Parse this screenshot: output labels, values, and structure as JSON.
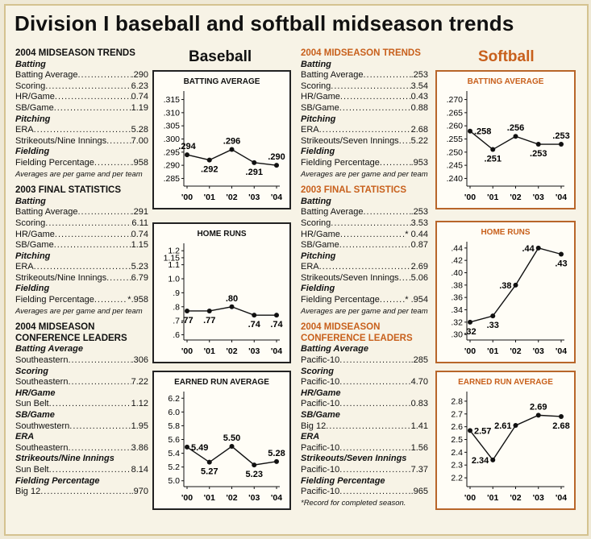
{
  "title": "Division I baseball and softball midseason trends",
  "baseball_label": "Baseball",
  "softball_label": "Softball",
  "left_col": {
    "sections": [
      {
        "heading": "2004 MIDSEASON TRENDS",
        "groups": [
          {
            "sub": "Batting",
            "rows": [
              {
                "label": "Batting Average",
                "value": ".290"
              },
              {
                "label": "Scoring",
                "value": "6.23"
              },
              {
                "label": "HR/Game",
                "value": "0.74"
              },
              {
                "label": "SB/Game",
                "value": "1.19"
              }
            ]
          },
          {
            "sub": "Pitching",
            "rows": [
              {
                "label": "ERA",
                "value": "5.28"
              },
              {
                "label": "Strikeouts/Nine Innings",
                "value": "7.00"
              }
            ]
          },
          {
            "sub": "Fielding",
            "rows": [
              {
                "label": "Fielding Percentage",
                "value": ".958"
              }
            ]
          }
        ],
        "note": "Averages are per game and per team"
      },
      {
        "heading": "2003 FINAL STATISTICS",
        "groups": [
          {
            "sub": "Batting",
            "rows": [
              {
                "label": "Batting Average",
                "value": ".291"
              },
              {
                "label": "Scoring",
                "value": "6.11"
              },
              {
                "label": "HR/Game",
                "value": "0.74"
              },
              {
                "label": "SB/Game",
                "value": "1.15"
              }
            ]
          },
          {
            "sub": "Pitching",
            "rows": [
              {
                "label": "ERA",
                "value": "5.23"
              },
              {
                "label": "Strikeouts/Nine Innings",
                "value": "6.79"
              }
            ]
          },
          {
            "sub": "Fielding",
            "rows": [
              {
                "label": "Fielding Percentage",
                "value": "*.958"
              }
            ]
          }
        ],
        "note": "Averages are per game and per team"
      },
      {
        "heading": "2004 MIDSEASON CONFERENCE LEADERS",
        "groups": [
          {
            "sub": "Batting Average",
            "rows": [
              {
                "label": "Southeastern",
                "value": ".306"
              }
            ]
          },
          {
            "sub": "Scoring",
            "rows": [
              {
                "label": "Southeastern",
                "value": "7.22"
              }
            ]
          },
          {
            "sub": "HR/Game",
            "rows": [
              {
                "label": "Sun Belt",
                "value": "1.12"
              }
            ]
          },
          {
            "sub": "SB/Game",
            "rows": [
              {
                "label": "Southwestern",
                "value": "1.95"
              }
            ]
          },
          {
            "sub": "ERA",
            "rows": [
              {
                "label": "Southeastern",
                "value": "3.86"
              }
            ]
          },
          {
            "sub": "Strikeouts/Nine Innings",
            "rows": [
              {
                "label": "Sun Belt",
                "value": "8.14"
              }
            ]
          },
          {
            "sub": "Fielding Percentage",
            "rows": [
              {
                "label": "Big 12",
                "value": ".970"
              }
            ]
          }
        ]
      }
    ]
  },
  "right_col": {
    "sections": [
      {
        "heading": "2004 MIDSEASON TRENDS",
        "groups": [
          {
            "sub": "Batting",
            "rows": [
              {
                "label": "Batting Average",
                "value": ".253"
              },
              {
                "label": "Scoring",
                "value": "3.54"
              },
              {
                "label": "HR/Game",
                "value": "0.43"
              },
              {
                "label": "SB/Game",
                "value": "0.88"
              }
            ]
          },
          {
            "sub": "Pitching",
            "rows": [
              {
                "label": "ERA",
                "value": "2.68"
              },
              {
                "label": "Strikeouts/Seven Innings",
                "value": "5.22"
              }
            ]
          },
          {
            "sub": "Fielding",
            "rows": [
              {
                "label": "Fielding Percentage",
                "value": ".953"
              }
            ]
          }
        ],
        "note": "Averages are per game and per team"
      },
      {
        "heading": "2003 FINAL STATISTICS",
        "groups": [
          {
            "sub": "Batting",
            "rows": [
              {
                "label": "Batting Average",
                "value": ".253"
              },
              {
                "label": "Scoring",
                "value": "3.53"
              },
              {
                "label": "HR/Game",
                "value": "* 0.44"
              },
              {
                "label": "SB/Game",
                "value": "0.87"
              }
            ]
          },
          {
            "sub": "Pitching",
            "rows": [
              {
                "label": "ERA",
                "value": "2.69"
              },
              {
                "label": "Strikeouts/Seven Innings",
                "value": "5.06"
              }
            ]
          },
          {
            "sub": "Fielding",
            "rows": [
              {
                "label": "Fielding Percentage",
                "value": "* .954"
              }
            ]
          }
        ],
        "note": "Averages are per game and per team"
      },
      {
        "heading": "2004 MIDSEASON CONFERENCE LEADERS",
        "groups": [
          {
            "sub": "Batting Average",
            "rows": [
              {
                "label": "Pacific-10",
                "value": ".285"
              }
            ]
          },
          {
            "sub": "Scoring",
            "rows": [
              {
                "label": "Pacific-10",
                "value": "4.70"
              }
            ]
          },
          {
            "sub": "HR/Game",
            "rows": [
              {
                "label": "Pacific-10",
                "value": "0.83"
              }
            ]
          },
          {
            "sub": "SB/Game",
            "rows": [
              {
                "label": "Big 12",
                "value": "1.41"
              }
            ]
          },
          {
            "sub": "ERA",
            "rows": [
              {
                "label": "Pacific-10",
                "value": "1.56"
              }
            ]
          },
          {
            "sub": "Strikeouts/Seven Innings",
            "rows": [
              {
                "label": "Pacific-10",
                "value": "7.37"
              }
            ]
          },
          {
            "sub": "Fielding Percentage",
            "rows": [
              {
                "label": "Pacific-10",
                "value": ".965"
              }
            ]
          }
        ],
        "note": "*Record for completed season."
      }
    ]
  },
  "colors": {
    "orange": "#c8601c",
    "chart_border_orange": "#b8662a",
    "line": "#111111"
  },
  "chart_data": [
    {
      "id": "bb-avg",
      "sport": "Baseball",
      "type": "line",
      "title": "Batting Average",
      "categories": [
        "'00",
        "'01",
        "'02",
        "'03",
        "'04"
      ],
      "values": [
        0.294,
        0.292,
        0.296,
        0.291,
        0.29
      ],
      "value_labels": [
        ".294",
        ".292",
        ".296",
        ".291",
        ".290"
      ],
      "label_pos": [
        "above",
        "below",
        "above",
        "below",
        "above"
      ],
      "ylim": [
        0.283,
        0.317
      ],
      "yticks": [
        0.285,
        0.29,
        0.295,
        0.3,
        0.305,
        0.31,
        0.315
      ],
      "ytick_labels": [
        ".285",
        ".290",
        ".295",
        ".300",
        ".305",
        ".310",
        ".315"
      ]
    },
    {
      "id": "bb-hr",
      "sport": "Baseball",
      "type": "line",
      "title": "Home Runs",
      "categories": [
        "'00",
        "'01",
        "'02",
        "'03",
        "'04"
      ],
      "values": [
        0.77,
        0.77,
        0.8,
        0.74,
        0.74
      ],
      "value_labels": [
        ".77",
        ".77",
        ".80",
        ".74",
        ".74"
      ],
      "label_pos": [
        "below",
        "below",
        "above",
        "below",
        "below"
      ],
      "ylim": [
        0.58,
        1.23
      ],
      "yticks": [
        0.6,
        0.7,
        0.8,
        0.9,
        1.0,
        1.1,
        1.15,
        1.2
      ],
      "ytick_labels": [
        ".6",
        ".7",
        ".8",
        ".9",
        "1.0",
        "1.1",
        "1.15",
        "1.2"
      ]
    },
    {
      "id": "bb-era",
      "sport": "Baseball",
      "type": "line",
      "title": "Earned Run Average",
      "categories": [
        "'00",
        "'01",
        "'02",
        "'03",
        "'04"
      ],
      "values": [
        5.49,
        5.27,
        5.5,
        5.23,
        5.28
      ],
      "value_labels": [
        "5.49",
        "5.27",
        "5.50",
        "5.23",
        "5.28"
      ],
      "label_pos": [
        "right",
        "below",
        "above",
        "below",
        "above"
      ],
      "ylim": [
        4.95,
        6.25
      ],
      "yticks": [
        5.0,
        5.2,
        5.4,
        5.6,
        5.8,
        6.0,
        6.2
      ],
      "ytick_labels": [
        "5.0",
        "5.2",
        "5.4",
        "5.6",
        "5.8",
        "6.0",
        "6.2"
      ]
    },
    {
      "id": "sb-avg",
      "sport": "Softball",
      "type": "line",
      "title": "Batting Average",
      "categories": [
        "'00",
        "'01",
        "'02",
        "'03",
        "'04"
      ],
      "values": [
        0.258,
        0.251,
        0.256,
        0.253,
        0.253
      ],
      "value_labels": [
        ".258",
        ".251",
        ".256",
        ".253",
        ".253"
      ],
      "label_pos": [
        "right",
        "below",
        "above",
        "below",
        "above"
      ],
      "ylim": [
        0.238,
        0.272
      ],
      "yticks": [
        0.24,
        0.245,
        0.25,
        0.255,
        0.26,
        0.265,
        0.27
      ],
      "ytick_labels": [
        ".240",
        ".245",
        ".250",
        ".255",
        ".260",
        ".265",
        ".270"
      ]
    },
    {
      "id": "sb-hr",
      "sport": "Softball",
      "type": "line",
      "title": "Home Runs",
      "categories": [
        "'00",
        "'01",
        "'02",
        "'03",
        "'04"
      ],
      "values": [
        0.32,
        0.33,
        0.38,
        0.44,
        0.43
      ],
      "value_labels": [
        ".32",
        ".33",
        ".38",
        ".44",
        ".43"
      ],
      "label_pos": [
        "below",
        "below",
        "left",
        "left",
        "below"
      ],
      "ylim": [
        0.295,
        0.445
      ],
      "yticks": [
        0.3,
        0.32,
        0.34,
        0.36,
        0.38,
        0.4,
        0.42,
        0.44
      ],
      "ytick_labels": [
        ".30",
        ".32",
        ".34",
        ".36",
        ".38",
        ".40",
        ".42",
        ".44"
      ]
    },
    {
      "id": "sb-era",
      "sport": "Softball",
      "type": "line",
      "title": "Earned Run Average",
      "categories": [
        "'00",
        "'01",
        "'02",
        "'03",
        "'04"
      ],
      "values": [
        2.57,
        2.34,
        2.61,
        2.69,
        2.68
      ],
      "value_labels": [
        "2.57",
        "2.34",
        "2.61",
        "2.69",
        "2.68"
      ],
      "label_pos": [
        "right",
        "left",
        "left",
        "above",
        "below"
      ],
      "ylim": [
        2.15,
        2.85
      ],
      "yticks": [
        2.2,
        2.3,
        2.4,
        2.5,
        2.6,
        2.7,
        2.8
      ],
      "ytick_labels": [
        "2.2",
        "2.3",
        "2.4",
        "2.5",
        "2.6",
        "2.7",
        "2.8"
      ]
    }
  ]
}
